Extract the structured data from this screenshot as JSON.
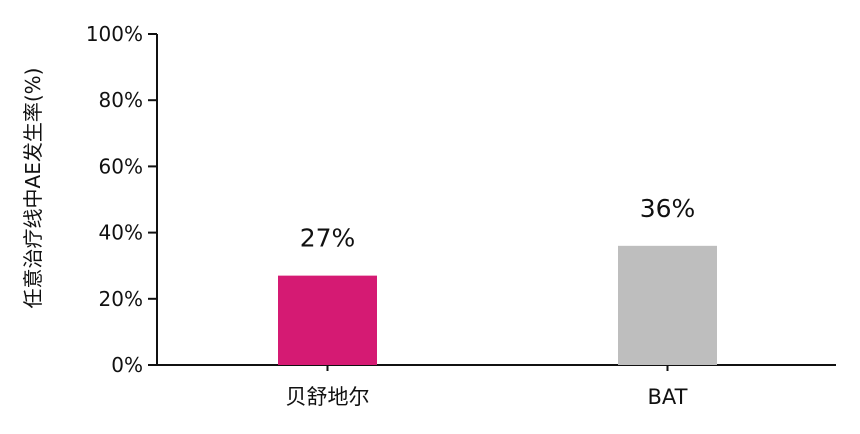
{
  "chart_data": {
    "type": "bar",
    "title": "",
    "xlabel": "",
    "ylabel": "任意治疗线中AE发生率(%)",
    "categories": [
      "贝舒地尔",
      "BAT"
    ],
    "values": [
      27,
      36
    ],
    "data_labels": [
      "27%",
      "36%"
    ],
    "colors": [
      "#D51A73",
      "#BEBEBE"
    ],
    "ylim": [
      0,
      100
    ],
    "yticks": [
      0,
      20,
      40,
      60,
      80,
      100
    ],
    "ytick_labels": [
      "0%",
      "20%",
      "40%",
      "60%",
      "80%",
      "100%"
    ],
    "grid": false,
    "legend": "none"
  }
}
